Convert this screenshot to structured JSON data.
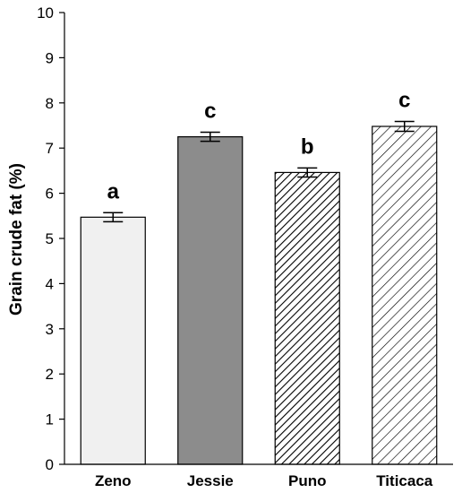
{
  "chart_data": {
    "type": "bar",
    "categories": [
      "Zeno",
      "Jessie",
      "Puno",
      "Titicaca"
    ],
    "values": [
      5.47,
      7.25,
      6.46,
      7.48
    ],
    "errors": [
      0.1,
      0.1,
      0.1,
      0.11
    ],
    "significance_letters": [
      "a",
      "c",
      "b",
      "c"
    ],
    "bar_fills": [
      "light-gray-solid",
      "dark-gray-solid",
      "dense-diagonal-hatch",
      "light-diagonal-hatch"
    ],
    "colors": {
      "light_fill": "#f0f0f0",
      "dark_fill": "#8c8c8c",
      "stroke": "#000000"
    },
    "xlabel": "",
    "ylabel": "Grain crude fat (%)",
    "ylim": [
      0,
      10
    ],
    "yticks": [
      0,
      1,
      2,
      3,
      4,
      5,
      6,
      7,
      8,
      9,
      10
    ],
    "grid": false,
    "legend": "none"
  }
}
